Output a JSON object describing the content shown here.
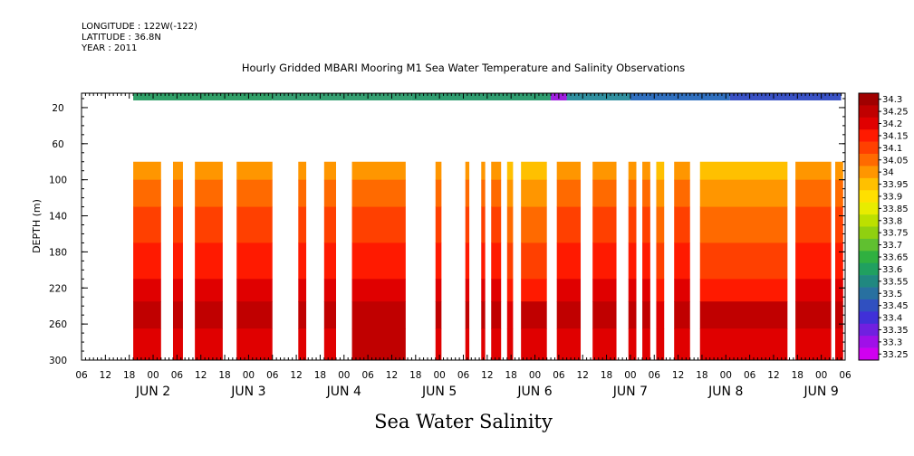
{
  "header": {
    "longitude": "LONGITUDE : 122W(-122)",
    "latitude": "LATITUDE : 36.8N",
    "year": "YEAR : 2011"
  },
  "chart_data": {
    "type": "heatmap",
    "title": "Hourly Gridded MBARI Mooring M1 Sea Water Temperature and Salinity Observations",
    "xlabel": "Sea Water Salinity",
    "ylabel": "DEPTH (m)",
    "x_unit": "hours since JUN 2 00:00, 2011",
    "xlim": [
      -18,
      174
    ],
    "ylim": [
      300,
      4
    ],
    "y_ticks": [
      20,
      60,
      100,
      140,
      180,
      220,
      260,
      300
    ],
    "x_hour_ticks": [
      "06",
      "12",
      "18",
      "00",
      "06",
      "12",
      "18",
      "00",
      "06",
      "12",
      "18",
      "00",
      "06",
      "12",
      "18",
      "00",
      "06",
      "12",
      "18",
      "00",
      "06",
      "12",
      "18",
      "00",
      "06",
      "12",
      "18",
      "00",
      "06",
      "12",
      "18",
      "00",
      "06"
    ],
    "day_labels": [
      {
        "label": "JUN  2",
        "hour": 0
      },
      {
        "label": "JUN  3",
        "hour": 24
      },
      {
        "label": "JUN  4",
        "hour": 48
      },
      {
        "label": "JUN  5",
        "hour": 72
      },
      {
        "label": "JUN  6",
        "hour": 96
      },
      {
        "label": "JUN  7",
        "hour": 120
      },
      {
        "label": "JUN  8",
        "hour": 144
      },
      {
        "label": "JUN  9",
        "hour": 168
      }
    ],
    "colorbar": {
      "levels": [
        "34.3",
        "34.25",
        "34.2",
        "34.15",
        "34.1",
        "34.05",
        "34",
        "33.95",
        "33.9",
        "33.85",
        "33.8",
        "33.75",
        "33.7",
        "33.65",
        "33.6",
        "33.55",
        "33.5",
        "33.45",
        "33.4",
        "33.35",
        "33.3",
        "33.25"
      ],
      "colors": [
        "#a00000",
        "#c00000",
        "#e00000",
        "#ff1a00",
        "#ff4000",
        "#ff6a00",
        "#ff9600",
        "#ffc000",
        "#ffe000",
        "#e8ec00",
        "#bce000",
        "#90d010",
        "#60c030",
        "#30b040",
        "#20a060",
        "#208880",
        "#2870a0",
        "#3050c0",
        "#4030d8",
        "#7020e0",
        "#a010e8",
        "#d000f0"
      ]
    },
    "surface_band": {
      "depth_range": [
        4,
        12
      ],
      "segments": [
        {
          "from": -5,
          "to": 30,
          "color": "#30a068"
        },
        {
          "from": 30,
          "to": 65,
          "color": "#35a072"
        },
        {
          "from": 65,
          "to": 100,
          "color": "#2f9d70"
        },
        {
          "from": 100,
          "to": 120,
          "color": "#3090a0"
        },
        {
          "from": 120,
          "to": 145,
          "color": "#3070c0"
        },
        {
          "from": 145,
          "to": 173,
          "color": "#3a52c6"
        }
      ],
      "note_segments": [
        {
          "from": 100,
          "to": 104,
          "color": "#a020e0"
        }
      ]
    },
    "profile_depth_range": [
      80,
      300
    ],
    "data_segments": [
      {
        "from": -5,
        "to": 2,
        "values": [
          34.0,
          34.05,
          34.1,
          34.15,
          34.2,
          34.25,
          34.2
        ]
      },
      {
        "from": 5,
        "to": 7.5,
        "values": [
          34.0,
          34.05,
          34.1,
          34.15,
          34.2,
          34.25,
          34.2
        ]
      },
      {
        "from": 10.5,
        "to": 17.5,
        "values": [
          34.0,
          34.05,
          34.1,
          34.15,
          34.2,
          34.25,
          34.2
        ]
      },
      {
        "from": 21,
        "to": 30,
        "values": [
          34.0,
          34.05,
          34.1,
          34.15,
          34.2,
          34.25,
          34.2
        ]
      },
      {
        "from": 36.5,
        "to": 38.5,
        "values": [
          34.0,
          34.05,
          34.1,
          34.15,
          34.2,
          34.25,
          34.2
        ]
      },
      {
        "from": 43,
        "to": 46,
        "values": [
          34.0,
          34.05,
          34.1,
          34.15,
          34.2,
          34.25,
          34.2
        ]
      },
      {
        "from": 50,
        "to": 63.5,
        "values": [
          34.0,
          34.05,
          34.1,
          34.15,
          34.2,
          34.25,
          34.25
        ]
      },
      {
        "from": 71,
        "to": 72.5,
        "values": [
          34.0,
          34.05,
          34.1,
          34.15,
          34.2,
          34.25,
          34.2
        ]
      },
      {
        "from": 78.5,
        "to": 79.5,
        "values": [
          34.0,
          34.05,
          34.1,
          34.15,
          34.2,
          34.25,
          34.2
        ]
      },
      {
        "from": 82.5,
        "to": 83.5,
        "values": [
          34.0,
          34.05,
          34.1,
          34.15,
          34.2,
          34.25,
          34.2
        ]
      },
      {
        "from": 85,
        "to": 87.5,
        "values": [
          34.0,
          34.05,
          34.1,
          34.15,
          34.2,
          34.25,
          34.2
        ]
      },
      {
        "from": 89,
        "to": 90.5,
        "values": [
          33.95,
          34.0,
          34.05,
          34.1,
          34.15,
          34.2,
          34.2
        ]
      },
      {
        "from": 92.5,
        "to": 99,
        "values": [
          33.95,
          34.0,
          34.05,
          34.1,
          34.15,
          34.25,
          34.2
        ]
      },
      {
        "from": 101.5,
        "to": 107.5,
        "values": [
          34.0,
          34.05,
          34.1,
          34.15,
          34.2,
          34.25,
          34.2
        ]
      },
      {
        "from": 110.5,
        "to": 116.5,
        "values": [
          34.0,
          34.05,
          34.1,
          34.15,
          34.2,
          34.25,
          34.2
        ]
      },
      {
        "from": 119.5,
        "to": 121.5,
        "values": [
          34.0,
          34.05,
          34.1,
          34.15,
          34.2,
          34.25,
          34.2
        ]
      },
      {
        "from": 123,
        "to": 125,
        "values": [
          34.0,
          34.05,
          34.1,
          34.15,
          34.2,
          34.25,
          34.2
        ]
      },
      {
        "from": 126.5,
        "to": 128.5,
        "values": [
          33.95,
          34.0,
          34.05,
          34.1,
          34.15,
          34.2,
          34.2
        ]
      },
      {
        "from": 131,
        "to": 135,
        "values": [
          34.0,
          34.05,
          34.1,
          34.15,
          34.2,
          34.25,
          34.2
        ]
      },
      {
        "from": 137.5,
        "to": 159.5,
        "values": [
          33.95,
          34.0,
          34.05,
          34.1,
          34.15,
          34.25,
          34.2
        ]
      },
      {
        "from": 161.5,
        "to": 170.5,
        "values": [
          34.0,
          34.05,
          34.1,
          34.15,
          34.2,
          34.25,
          34.2
        ]
      },
      {
        "from": 171.5,
        "to": 173.5,
        "values": [
          34.0,
          34.05,
          34.1,
          34.15,
          34.2,
          34.25,
          34.2
        ]
      }
    ],
    "profile_layer_depths": [
      80,
      100,
      130,
      170,
      210,
      235,
      265,
      300
    ]
  }
}
